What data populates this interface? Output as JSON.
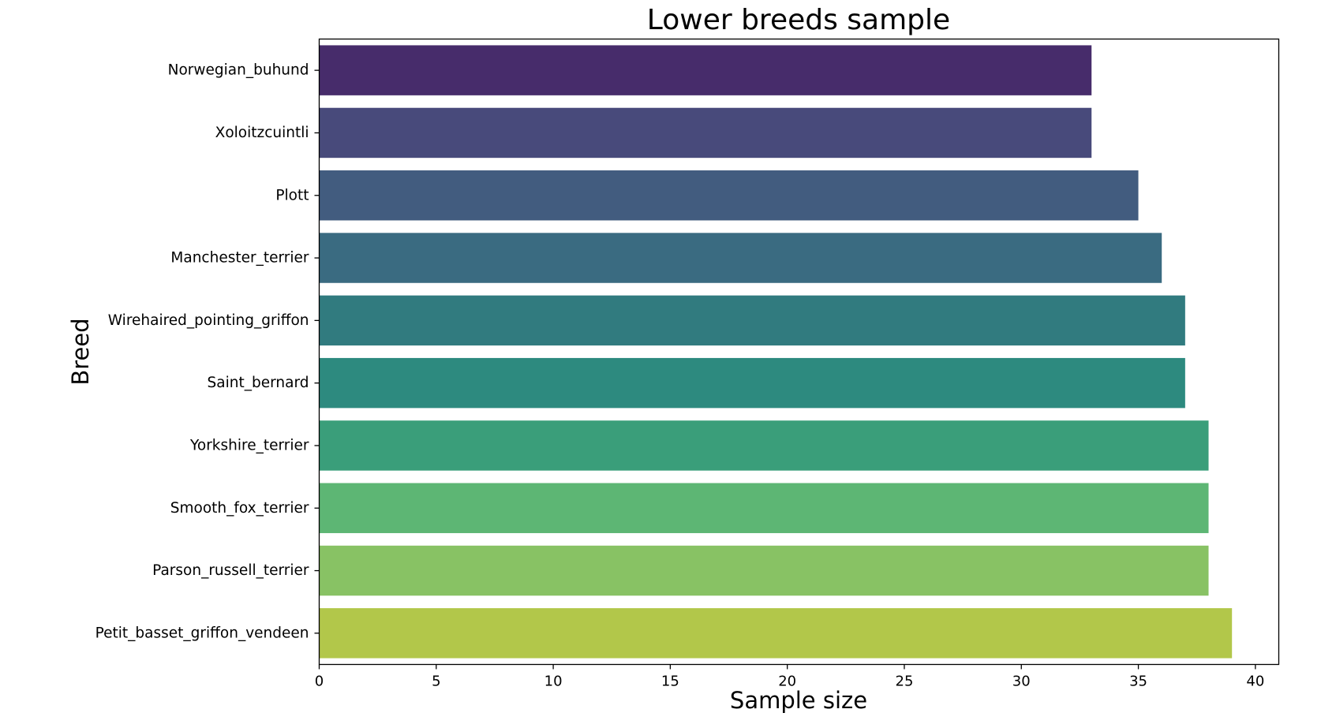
{
  "chart_data": {
    "type": "bar",
    "orientation": "horizontal",
    "title": "Lower breeds sample",
    "xlabel": "Sample size",
    "ylabel": "Breed",
    "categories": [
      "Norwegian_buhund",
      "Xoloitzcuintli",
      "Plott",
      "Manchester_terrier",
      "Wirehaired_pointing_griffon",
      "Saint_bernard",
      "Yorkshire_terrier",
      "Smooth_fox_terrier",
      "Parson_russell_terrier",
      "Petit_basset_griffon_vendeen"
    ],
    "values": [
      33,
      33,
      35,
      36,
      37,
      37,
      38,
      38,
      38,
      39
    ],
    "colors": [
      "#472c6b",
      "#484a7b",
      "#425c7f",
      "#3a6b81",
      "#317b7f",
      "#2d8a7f",
      "#3a9e7a",
      "#5db674",
      "#88c264",
      "#b2c74a"
    ],
    "xlim": [
      0,
      41
    ],
    "xticks": [
      0,
      5,
      10,
      15,
      20,
      25,
      30,
      35,
      40
    ],
    "grid": false,
    "legend": "none"
  }
}
